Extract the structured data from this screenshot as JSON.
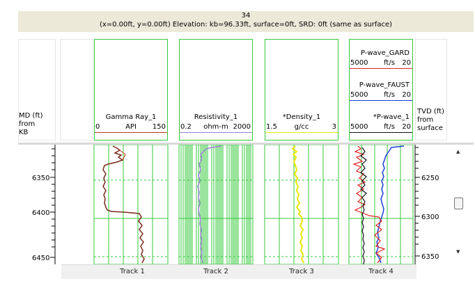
{
  "header": {
    "well_number": "34",
    "info_line": "(x=0.00ft, y=0.00ft) Elevation: kb=96.33ft, surface=0ft, SRD: 0ft (same as surface)"
  },
  "md_label": [
    "MD (ft)",
    "from",
    "KB"
  ],
  "tvd_label": [
    "TVD (ft)",
    "from",
    "surface"
  ],
  "tracks": [
    {
      "name": "Track 1",
      "curves": [
        {
          "name": "Gamma Ray_1",
          "min": "0",
          "unit": "API",
          "max": "150",
          "color": "#c0392b"
        }
      ]
    },
    {
      "name": "Track 2",
      "curves": [
        {
          "name": "Resistivity_1",
          "min": "0.2",
          "unit": "ohm-m",
          "max": "2000",
          "color": "#9b7fd6"
        }
      ]
    },
    {
      "name": "Track 3",
      "curves": [
        {
          "name": "*Density_1",
          "min": "1.5",
          "unit": "g/cc",
          "max": "3",
          "color": "#e8e800"
        }
      ]
    },
    {
      "name": "Track 4",
      "curves": [
        {
          "name": "P-wave_GARD",
          "min": "5000",
          "unit": "ft/s",
          "max": "20",
          "color": "#e02020"
        },
        {
          "name": "P-wave_FAUST",
          "min": "5000",
          "unit": "ft/s",
          "max": "20",
          "color": "#1c3fd6"
        },
        {
          "name": "*P-wave_1",
          "min": "5000",
          "unit": "ft/s",
          "max": "20",
          "color": "#111111"
        }
      ]
    }
  ],
  "md_ticks": [
    "6350",
    "6400",
    "6450"
  ],
  "tvd_ticks": [
    "6250",
    "6300",
    "6350"
  ],
  "scroll": {
    "up": "▲",
    "down": "▼"
  }
}
